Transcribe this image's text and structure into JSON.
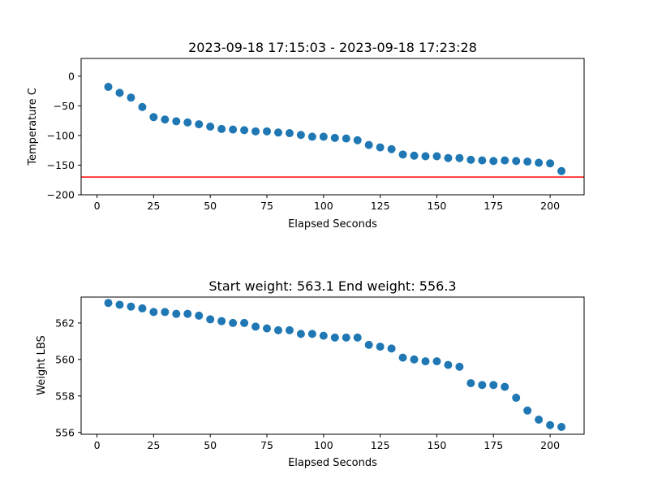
{
  "chart_data": [
    {
      "type": "scatter",
      "title": "2023-09-18 17:15:03 - 2023-09-18 17:23:28",
      "xlabel": "Elapsed Seconds",
      "ylabel": "Temperature C",
      "xlim": [
        -7,
        215
      ],
      "ylim": [
        -200,
        30
      ],
      "xticks": [
        0,
        25,
        50,
        75,
        100,
        125,
        150,
        175,
        200
      ],
      "yticks": [
        -200,
        -150,
        -100,
        -50,
        0
      ],
      "x": [
        5,
        10,
        15,
        20,
        25,
        30,
        35,
        40,
        45,
        50,
        55,
        60,
        65,
        70,
        75,
        80,
        85,
        90,
        95,
        100,
        105,
        110,
        115,
        120,
        125,
        130,
        135,
        140,
        145,
        150,
        155,
        160,
        165,
        170,
        175,
        180,
        185,
        190,
        195,
        200,
        205
      ],
      "y": [
        -18,
        -28,
        -36,
        -52,
        -69,
        -73,
        -76,
        -78,
        -81,
        -85,
        -89,
        -90,
        -91,
        -93,
        -93,
        -95,
        -96,
        -99,
        -102,
        -102,
        -104,
        -105,
        -108,
        -116,
        -120,
        -123,
        -132,
        -134,
        -135,
        -135,
        -138,
        -138,
        -141,
        -142,
        -143,
        -142,
        -143,
        -144,
        -146,
        -147,
        -160
      ],
      "hline": {
        "y": -170,
        "color": "#ff0000"
      },
      "marker_color": "#1f77b4",
      "grid": false
    },
    {
      "type": "scatter",
      "title": "Start weight: 563.1 End weight: 556.3",
      "xlabel": "Elapsed Seconds",
      "ylabel": "Weight LBS",
      "xlim": [
        -7,
        215
      ],
      "ylim": [
        555.9,
        563.42
      ],
      "xticks": [
        0,
        25,
        50,
        75,
        100,
        125,
        150,
        175,
        200
      ],
      "yticks": [
        556,
        558,
        560,
        562
      ],
      "x": [
        5,
        10,
        15,
        20,
        25,
        30,
        35,
        40,
        45,
        50,
        55,
        60,
        65,
        70,
        75,
        80,
        85,
        90,
        95,
        100,
        105,
        110,
        115,
        120,
        125,
        130,
        135,
        140,
        145,
        150,
        155,
        160,
        165,
        170,
        175,
        180,
        185,
        190,
        195,
        200,
        205
      ],
      "y": [
        563.1,
        563.0,
        562.9,
        562.8,
        562.6,
        562.6,
        562.5,
        562.5,
        562.4,
        562.2,
        562.1,
        562.0,
        562.0,
        561.8,
        561.7,
        561.6,
        561.6,
        561.4,
        561.4,
        561.3,
        561.2,
        561.2,
        561.2,
        560.8,
        560.7,
        560.6,
        560.1,
        560.0,
        559.9,
        559.9,
        559.7,
        559.6,
        558.7,
        558.6,
        558.6,
        558.5,
        557.9,
        557.2,
        556.7,
        556.4,
        556.3
      ],
      "marker_color": "#1f77b4",
      "grid": false
    }
  ]
}
